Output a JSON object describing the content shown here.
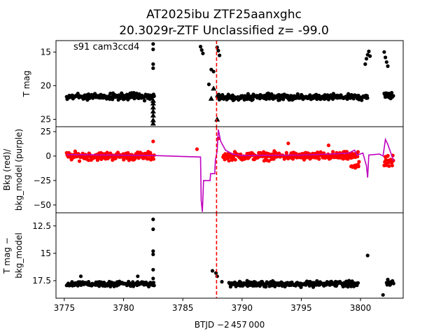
{
  "chart_data": {
    "type": "scatter",
    "title_line1": "AT2025ibu  ZTF25aanxghc",
    "title_line2": "20.3029r-ZTF Unclassified z= -99.0",
    "xlabel": "BTJD −2 457 000",
    "xlim": [
      3774.3,
      3803.6
    ],
    "x_ticks": [
      3775,
      3780,
      3785,
      3790,
      3795,
      3800
    ],
    "event_line_x": 3787.85,
    "colors": {
      "mag": "#000000",
      "bkg": "#ff0000",
      "bkg_model": "#bf00bf",
      "event_line": "#ff0000"
    },
    "panels": [
      {
        "id": "tmag",
        "ylabel": "T mag",
        "ylim": [
          26.1,
          13.3
        ],
        "inverted": true,
        "y_ticks": [
          15,
          20,
          25
        ],
        "annotation": "s91 cam3ccd4",
        "series": [
          {
            "kind": "points",
            "color": "#000000",
            "segments": [
              {
                "x": [
                  3775.2,
                  3782.6
                ],
                "y": 21.6,
                "noise": 0.7
              },
              {
                "x": [
                  3787.9,
                  3800.6
                ],
                "y": 21.7,
                "noise": 0.6
              },
              {
                "x": [
                  3802.0,
                  3802.8
                ],
                "y": 21.4,
                "noise": 0.8
              }
            ],
            "points": [
              {
                "x": 3782.5,
                "y": 13.8
              },
              {
                "x": 3782.5,
                "y": 14.6
              },
              {
                "x": 3782.5,
                "y": 16.8
              },
              {
                "x": 3782.5,
                "y": 17.4
              },
              {
                "x": 3786.5,
                "y": 14.2
              },
              {
                "x": 3786.6,
                "y": 14.7
              },
              {
                "x": 3786.7,
                "y": 15.2
              },
              {
                "x": 3787.2,
                "y": 19.8
              },
              {
                "x": 3787.4,
                "y": 17.6
              },
              {
                "x": 3787.6,
                "y": 17.9
              },
              {
                "x": 3787.9,
                "y": 14.3
              },
              {
                "x": 3788.0,
                "y": 14.8
              },
              {
                "x": 3788.1,
                "y": 15.5
              },
              {
                "x": 3800.4,
                "y": 16.8
              },
              {
                "x": 3800.5,
                "y": 16.0
              },
              {
                "x": 3800.6,
                "y": 15.4
              },
              {
                "x": 3800.7,
                "y": 14.9
              },
              {
                "x": 3800.8,
                "y": 15.6
              },
              {
                "x": 3802.0,
                "y": 15.0
              },
              {
                "x": 3802.1,
                "y": 15.8
              },
              {
                "x": 3802.2,
                "y": 16.5
              },
              {
                "x": 3802.3,
                "y": 17.1
              }
            ]
          },
          {
            "kind": "triangles",
            "color": "#000000",
            "points": [
              {
                "x": 3782.5,
                "y": 22.2
              },
              {
                "x": 3782.5,
                "y": 22.6
              },
              {
                "x": 3782.5,
                "y": 23.2
              },
              {
                "x": 3782.5,
                "y": 23.8
              },
              {
                "x": 3782.5,
                "y": 24.4
              },
              {
                "x": 3782.5,
                "y": 25.1
              },
              {
                "x": 3782.5,
                "y": 25.6
              },
              {
                "x": 3787.4,
                "y": 21.9
              },
              {
                "x": 3787.6,
                "y": 20.4
              },
              {
                "x": 3787.9,
                "y": 25.0
              }
            ]
          }
        ]
      },
      {
        "id": "bkg",
        "ylabel_line1": "Bkg (red)/",
        "ylabel_line2": "bkg_model (purple)",
        "ylim": [
          -58,
          30
        ],
        "inverted": false,
        "y_ticks": [
          -50,
          -25,
          0,
          25
        ],
        "series": [
          {
            "kind": "points",
            "color": "#ff0000",
            "segments": [
              {
                "x": [
                  3775.2,
                  3782.6
                ],
                "y": 0.0,
                "noise": 6.0
              },
              {
                "x": [
                  3788.4,
                  3799.8
                ],
                "y": 0.0,
                "noise": 6.0
              },
              {
                "x": [
                  3799.2,
                  3799.9
                ],
                "y": -10.0,
                "noise": 5.0
              },
              {
                "x": [
                  3802.0,
                  3802.8
                ],
                "y": -6.0,
                "noise": 9.0
              }
            ],
            "points": [
              {
                "x": 3782.5,
                "y": 15.0
              },
              {
                "x": 3786.2,
                "y": 7.0
              },
              {
                "x": 3788.0,
                "y": 18.0
              },
              {
                "x": 3793.9,
                "y": 13.0
              },
              {
                "x": 3797.3,
                "y": 11.0
              }
            ]
          },
          {
            "kind": "line",
            "color": "#bf00bf",
            "points": [
              {
                "x": 3775.2,
                "y": 1.5
              },
              {
                "x": 3782.6,
                "y": 0.5
              },
              {
                "x": 3786.5,
                "y": -1.0
              },
              {
                "x": 3786.55,
                "y": -45.0
              },
              {
                "x": 3786.65,
                "y": -57.0
              },
              {
                "x": 3786.75,
                "y": -25.0
              },
              {
                "x": 3787.3,
                "y": -25.0
              },
              {
                "x": 3787.35,
                "y": -18.0
              },
              {
                "x": 3787.7,
                "y": -18.0
              },
              {
                "x": 3787.75,
                "y": -4.0
              },
              {
                "x": 3787.9,
                "y": 5.0
              },
              {
                "x": 3788.0,
                "y": 27.0
              },
              {
                "x": 3788.2,
                "y": 15.0
              },
              {
                "x": 3788.6,
                "y": 6.0
              },
              {
                "x": 3789.2,
                "y": 2.0
              },
              {
                "x": 3790.0,
                "y": 0.5
              },
              {
                "x": 3795.0,
                "y": 1.0
              },
              {
                "x": 3797.5,
                "y": 2.0
              },
              {
                "x": 3799.0,
                "y": 3.0
              },
              {
                "x": 3799.5,
                "y": 6.0
              },
              {
                "x": 3799.7,
                "y": 1.0
              },
              {
                "x": 3800.2,
                "y": 3.0
              },
              {
                "x": 3800.5,
                "y": -10.0
              },
              {
                "x": 3800.6,
                "y": -22.0
              },
              {
                "x": 3800.7,
                "y": 1.0
              },
              {
                "x": 3801.6,
                "y": 2.0
              },
              {
                "x": 3801.9,
                "y": 0.0
              },
              {
                "x": 3802.1,
                "y": 17.0
              },
              {
                "x": 3802.3,
                "y": 12.0
              },
              {
                "x": 3802.5,
                "y": 5.0
              },
              {
                "x": 3802.8,
                "y": -5.0
              }
            ]
          }
        ]
      },
      {
        "id": "resid",
        "ylabel_line1": "T mag −",
        "ylabel_line2": "bkg_model",
        "ylim": [
          19.1,
          11.3
        ],
        "inverted": true,
        "y_ticks": [
          12.5,
          15.0,
          17.5
        ],
        "series": [
          {
            "kind": "points",
            "color": "#000000",
            "segments": [
              {
                "x": [
                  3775.2,
                  3782.6
                ],
                "y": 17.8,
                "noise": 0.35
              },
              {
                "x": [
                  3788.9,
                  3799.8
                ],
                "y": 17.8,
                "noise": 0.35
              },
              {
                "x": [
                  3802.2,
                  3802.8
                ],
                "y": 17.7,
                "noise": 0.3
              }
            ],
            "points": [
              {
                "x": 3782.5,
                "y": 11.9
              },
              {
                "x": 3782.5,
                "y": 12.8
              },
              {
                "x": 3782.5,
                "y": 14.8
              },
              {
                "x": 3782.5,
                "y": 15.1
              },
              {
                "x": 3782.5,
                "y": 16.5
              },
              {
                "x": 3782.5,
                "y": 17.3
              },
              {
                "x": 3781.2,
                "y": 17.1
              },
              {
                "x": 3776.4,
                "y": 17.1
              },
              {
                "x": 3787.5,
                "y": 16.6
              },
              {
                "x": 3787.8,
                "y": 16.8
              },
              {
                "x": 3787.9,
                "y": 17.1
              },
              {
                "x": 3788.3,
                "y": 17.6
              },
              {
                "x": 3800.6,
                "y": 15.2
              },
              {
                "x": 3801.9,
                "y": 18.8
              },
              {
                "x": 3802.3,
                "y": 17.4
              }
            ]
          }
        ]
      }
    ]
  }
}
